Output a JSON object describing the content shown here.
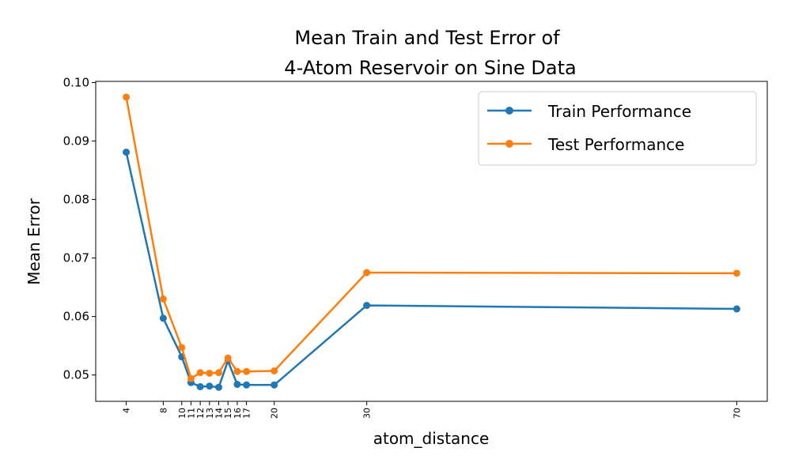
{
  "chart_data": {
    "type": "line",
    "title_line1": "Mean Train and Test Error of",
    "title_line2": "4-Atom Reservoir on Sine Data",
    "xlabel": "atom_distance",
    "ylabel": "Mean Error",
    "x": [
      4,
      8,
      10,
      11,
      12,
      13,
      14,
      15,
      16,
      17,
      20,
      30,
      70
    ],
    "x_ticks": [
      "4",
      "8",
      "10",
      "11",
      "12",
      "13",
      "14",
      "15",
      "16",
      "17",
      "20",
      "30",
      "70"
    ],
    "y_ticks": [
      "0.05",
      "0.06",
      "0.07",
      "0.08",
      "0.09",
      "0.10"
    ],
    "xlim": [
      0.7,
      73.3
    ],
    "ylim": [
      0.0455,
      0.1002
    ],
    "legend_position": "top-right",
    "grid": false,
    "series": [
      {
        "name": "Train Performance",
        "color": "#1f77b4",
        "values": [
          0.0881,
          0.0597,
          0.0531,
          0.0487,
          0.048,
          0.0481,
          0.0479,
          0.0524,
          0.0484,
          0.0483,
          0.0483,
          0.0619,
          0.0613
        ]
      },
      {
        "name": "Test Performance",
        "color": "#ff7f0e",
        "values": [
          0.0975,
          0.063,
          0.0547,
          0.0494,
          0.0504,
          0.0503,
          0.0504,
          0.0529,
          0.0506,
          0.0506,
          0.0507,
          0.0675,
          0.0674
        ]
      }
    ]
  }
}
